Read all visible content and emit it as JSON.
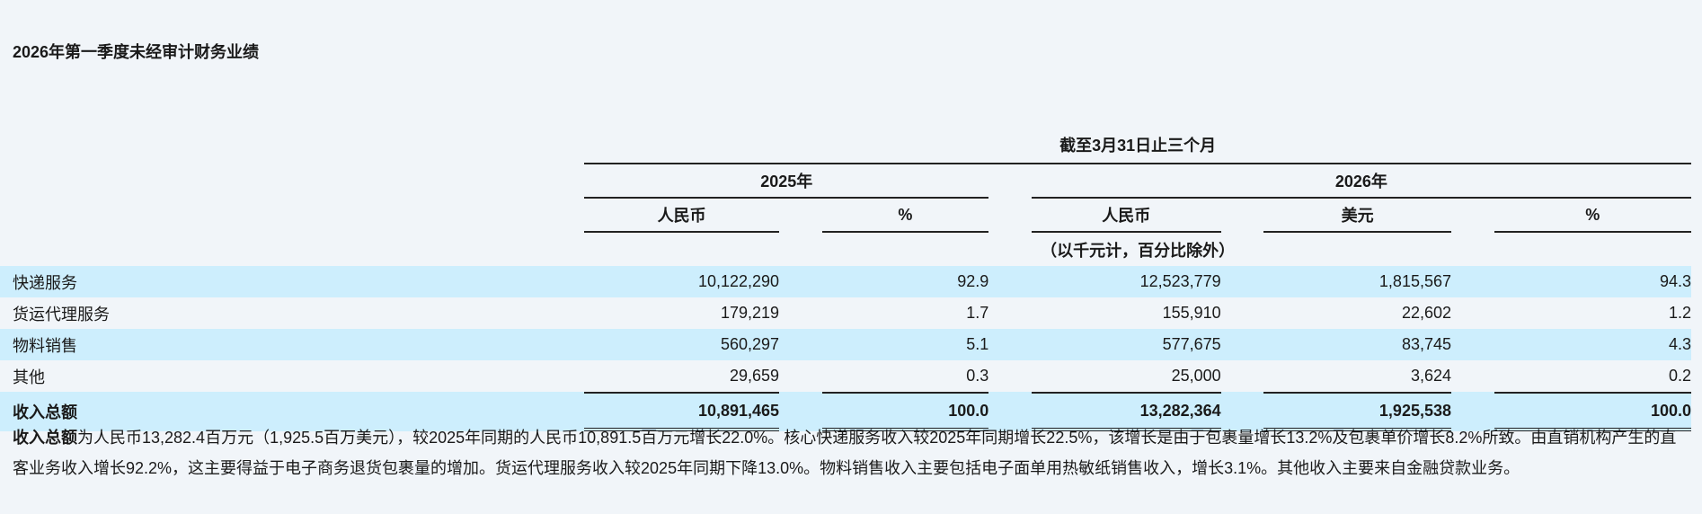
{
  "title": "2026年第一季度未经审计财务业绩",
  "header": {
    "period": "截至3月31日止三个月",
    "year_a": "2025年",
    "year_b": "2026年",
    "rmb": "人民币",
    "usd": "美元",
    "pct": "%",
    "unit_note": "（以千元计，百分比除外）"
  },
  "rows": [
    {
      "label": "快递服务",
      "rmb_2025": "10,122,290",
      "pct_2025": "92.9",
      "rmb_2026": "12,523,779",
      "usd_2026": "1,815,567",
      "pct_2026": "94.3"
    },
    {
      "label": "货运代理服务",
      "rmb_2025": "179,219",
      "pct_2025": "1.7",
      "rmb_2026": "155,910",
      "usd_2026": "22,602",
      "pct_2026": "1.2"
    },
    {
      "label": "物料销售",
      "rmb_2025": "560,297",
      "pct_2025": "5.1",
      "rmb_2026": "577,675",
      "usd_2026": "83,745",
      "pct_2026": "4.3"
    },
    {
      "label": "其他",
      "rmb_2025": "29,659",
      "pct_2025": "0.3",
      "rmb_2026": "25,000",
      "usd_2026": "3,624",
      "pct_2026": "0.2"
    },
    {
      "label": "收入总额",
      "rmb_2025": "10,891,465",
      "pct_2025": "100.0",
      "rmb_2026": "13,282,364",
      "usd_2026": "1,925,538",
      "pct_2026": "100.0"
    }
  ],
  "paragraph": {
    "lead": "收入总额",
    "text": "为人民币13,282.4百万元（1,925.5百万美元），较2025年同期的人民币10,891.5百万元增长22.0%。核心快递服务收入较2025年同期增长22.5%，该增长是由于包裹量增长13.2%及包裹单价增长8.2%所致。由直销机构产生的直客业务收入增长92.2%，这主要得益于电子商务退货包裹量的增加。货运代理服务收入较2025年同期下降13.0%。物料销售收入主要包括电子面单用热敏纸销售收入，增长3.1%。其他收入主要来自金融贷款业务。"
  }
}
